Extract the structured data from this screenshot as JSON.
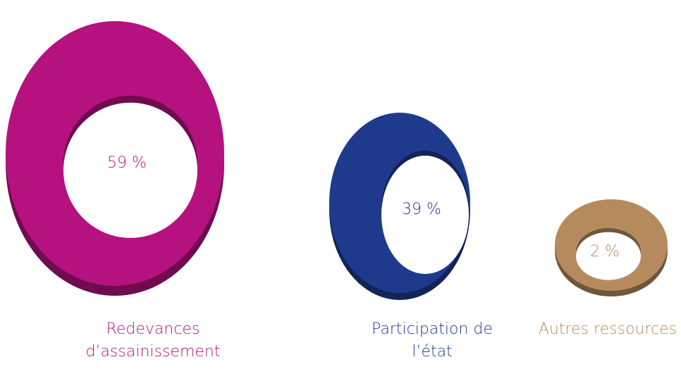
{
  "chart_data": {
    "type": "ring",
    "categories": [
      "Redevances d’assainissement",
      "Participation de l’état",
      "Autres ressources"
    ],
    "values": [
      59,
      39,
      2
    ],
    "value_labels": [
      "59 %",
      "39 %",
      "2 %"
    ],
    "colors": [
      "#b5117f",
      "#1f3a8d",
      "#b58b5e"
    ]
  }
}
